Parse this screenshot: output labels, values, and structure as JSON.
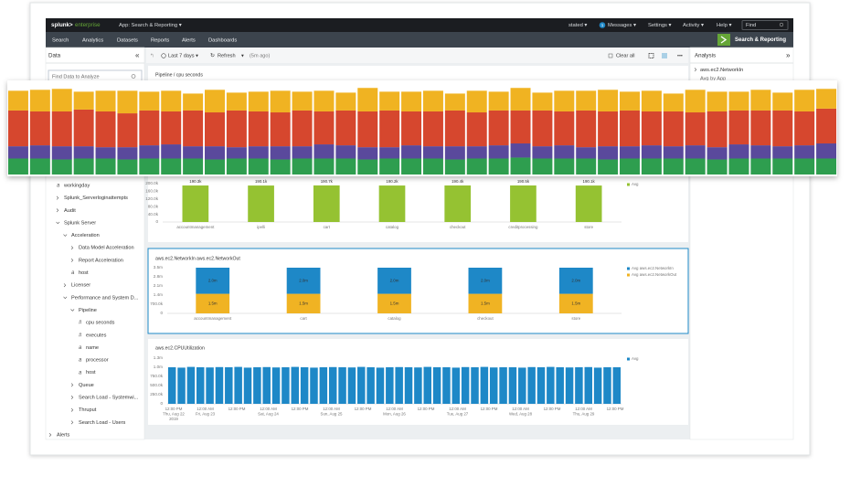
{
  "header": {
    "brand": "splunk>",
    "product": "enterprise",
    "app": "App: Search & Reporting ▾",
    "user": "stated ▾",
    "messages_count": "1",
    "messages": "Messages ▾",
    "settings": "Settings ▾",
    "activity": "Activity ▾",
    "help": "Help ▾",
    "find": "Find"
  },
  "nav": {
    "items": [
      "Search",
      "Analytics",
      "Datasets",
      "Reports",
      "Alerts",
      "Dashboards"
    ],
    "app_name": "Search & Reporting"
  },
  "left_panel": {
    "title": "Data",
    "collapse": "«",
    "search_placeholder": "Find Data to Analyze",
    "tree": [
      {
        "label": "workingday",
        "icon": "a"
      },
      {
        "label": "Splunk_Serverloginattempts"
      },
      {
        "label": "Audit"
      },
      {
        "label": "Splunk Server"
      },
      {
        "label": "Acceleration"
      },
      {
        "label": "Data Model Acceleration"
      },
      {
        "label": "Report Acceleration"
      },
      {
        "label": "host",
        "icon": "a"
      },
      {
        "label": "Licenser"
      },
      {
        "label": "Performance and System D..."
      },
      {
        "label": "Pipeline"
      },
      {
        "label": "cpu seconds",
        "icon": "#"
      },
      {
        "label": "executes",
        "icon": "#"
      },
      {
        "label": "name",
        "icon": "a"
      },
      {
        "label": "processor",
        "icon": "a"
      },
      {
        "label": "host",
        "icon": "a"
      },
      {
        "label": "Queue"
      },
      {
        "label": "Search Load - Systemwi..."
      },
      {
        "label": "Thruput"
      },
      {
        "label": "Search Load - Users"
      },
      {
        "label": "Alerts"
      }
    ]
  },
  "toolbar": {
    "time": "Last 7 days ▾",
    "refresh": "Refresh",
    "refresh_menu": "▾",
    "ago": "(5m ago)",
    "clear": "Clear all",
    "more": "•••"
  },
  "right_panel": {
    "title": "Analysis",
    "collapse": "»",
    "metric": "aws.ec2.NetworkIn",
    "sub": "Avg by App"
  },
  "chart_data": [
    {
      "type": "bar",
      "stacked": true,
      "categories": [
        null,
        null,
        null,
        null,
        null,
        null,
        null,
        null,
        null,
        null,
        null,
        null,
        null,
        null,
        null,
        null,
        null,
        null,
        null,
        null,
        null,
        null,
        null,
        null,
        null,
        null,
        null,
        null,
        null,
        null,
        null,
        null,
        null,
        null,
        null,
        null,
        null,
        null
      ],
      "ylim": [
        0,
        100
      ],
      "series": [
        {
          "color": "#f0b323",
          "values": [
            21,
            23,
            24,
            19,
            22,
            24,
            20,
            22,
            18,
            24,
            19,
            21,
            23,
            20,
            22,
            19,
            25,
            20,
            21,
            22,
            18,
            23,
            20,
            24,
            19,
            22,
            21,
            23,
            20,
            22,
            19,
            24,
            21,
            20,
            22,
            19,
            23,
            21
          ]
        },
        {
          "color": "#d6472e",
          "values": [
            38,
            36,
            37,
            39,
            38,
            36,
            37,
            35,
            38,
            36,
            39,
            37,
            36,
            38,
            35,
            37,
            38,
            39,
            36,
            37,
            38,
            36,
            37,
            35,
            38,
            36,
            39,
            37,
            38,
            36,
            37,
            35,
            38,
            36,
            37,
            38,
            36,
            37
          ]
        },
        {
          "color": "#5a4a9c",
          "values": [
            13,
            14,
            14,
            13,
            12,
            13,
            14,
            15,
            13,
            14,
            12,
            13,
            14,
            13,
            15,
            14,
            13,
            12,
            14,
            13,
            14,
            13,
            14,
            15,
            13,
            14,
            12,
            14,
            13,
            14,
            13,
            14,
            13,
            15,
            14,
            13,
            14,
            16
          ]
        },
        {
          "color": "#2e9e50",
          "values": [
            17,
            17,
            16,
            17,
            17,
            16,
            17,
            17,
            17,
            16,
            17,
            17,
            16,
            17,
            17,
            17,
            16,
            17,
            17,
            17,
            16,
            17,
            17,
            18,
            17,
            17,
            17,
            16,
            17,
            17,
            17,
            17,
            16,
            17,
            17,
            17,
            17,
            17
          ]
        }
      ]
    },
    {
      "type": "bar",
      "title": "Pipeline / cpu seconds",
      "categories": [
        "accountmanagement",
        "ipelli",
        "cart",
        "catalog",
        "checkout",
        "creditprocessing",
        "store"
      ],
      "ylim": [
        0,
        200000
      ],
      "yticks": [
        0,
        {
          "value": 40000,
          "label": "40.0k"
        },
        {
          "value": 80000,
          "label": "80.0k"
        },
        {
          "value": 120000,
          "label": "120.0k"
        },
        {
          "value": 160000,
          "label": "160.0k"
        },
        {
          "value": 200000,
          "label": "200.0k"
        }
      ],
      "grid": false,
      "legend": "right",
      "series": [
        {
          "name": "Avg",
          "color": "#95c232",
          "values": [
            190300,
            190100,
            190700,
            190200,
            190400,
            190500,
            190100
          ],
          "value_labels": [
            "190.3k",
            "190.1k",
            "190.7k",
            "190.2k",
            "190.4k",
            "190.5k",
            "190.1k"
          ]
        }
      ]
    },
    {
      "type": "bar",
      "stacked": true,
      "titles": [
        "aws.ec2.NetworkIn",
        "aws.ec2.NetworkOut"
      ],
      "categories": [
        "accountmanagement",
        "cart",
        "catalog",
        "checkout",
        "store"
      ],
      "ylim": [
        0,
        3500000
      ],
      "yticks": [
        0,
        {
          "value": 700000,
          "label": "700.0k"
        },
        {
          "value": 1400000,
          "label": "1.4m"
        },
        {
          "value": 2100000,
          "label": "2.1m"
        },
        {
          "value": 2800000,
          "label": "2.8m"
        },
        {
          "value": 3500000,
          "label": "3.5m"
        }
      ],
      "grid": false,
      "legend": "right",
      "series": [
        {
          "name": "Avg aws.ec2.NetworkIn",
          "color": "#1e88c7",
          "values": [
            2000000,
            2000000,
            2000000,
            2000000,
            2000000
          ],
          "value_labels": [
            "2.0m",
            "2.0m",
            "2.0m",
            "2.0m",
            "2.0m"
          ]
        },
        {
          "name": "Avg aws.ec2.NetworkOut",
          "color": "#f0b323",
          "values": [
            1500000,
            1500000,
            1500000,
            1500000,
            1500000
          ],
          "value_labels": [
            "1.5m",
            "1.5m",
            "1.5m",
            "1.5m",
            "1.5m"
          ]
        }
      ]
    },
    {
      "type": "bar",
      "title": "aws.ec2.CPUUtilization",
      "categories": [
        null,
        null,
        null,
        null,
        null,
        null,
        null,
        null,
        null,
        null,
        null,
        null,
        null,
        null,
        null,
        null,
        null,
        null,
        null,
        null,
        null,
        null,
        null,
        null,
        null,
        null,
        null,
        null,
        null,
        null,
        null,
        null,
        null,
        null,
        null,
        null,
        null,
        null,
        null,
        null,
        null,
        null,
        null,
        null,
        null,
        null,
        null,
        null
      ],
      "ylim": [
        0,
        1250000
      ],
      "yticks": [
        0,
        {
          "value": 250000,
          "label": "250.0k"
        },
        {
          "value": 500000,
          "label": "500.0k"
        },
        {
          "value": 750000,
          "label": "750.0k"
        },
        {
          "value": 1000000,
          "label": "1.0m"
        },
        {
          "value": 1250000,
          "label": "1.3m"
        }
      ],
      "grid": false,
      "legend": "right",
      "xtick_labels": [
        {
          "time": "12:00 PM",
          "day": "Thu, Aug 22",
          "year": "2019"
        },
        {
          "time": "12:00 AM",
          "day": "Fri, Aug 23"
        },
        {
          "time": "12:00 PM"
        },
        {
          "time": "12:00 AM",
          "day": "Sat, Aug 24"
        },
        {
          "time": "12:00 PM"
        },
        {
          "time": "12:00 AM",
          "day": "Sun, Aug 25"
        },
        {
          "time": "12:00 PM"
        },
        {
          "time": "12:00 AM",
          "day": "Mon, Aug 26"
        },
        {
          "time": "12:00 PM"
        },
        {
          "time": "12:00 AM",
          "day": "Tue, Aug 27"
        },
        {
          "time": "12:00 PM"
        },
        {
          "time": "12:00 AM",
          "day": "Wed, Aug 28"
        },
        {
          "time": "12:00 PM"
        },
        {
          "time": "12:00 AM",
          "day": "Thu, Aug 29"
        },
        {
          "time": "12:00 PM"
        }
      ],
      "series": [
        {
          "name": "Avg",
          "color": "#1e88c7",
          "values": [
            1000000,
            990000,
            1010000,
            1000000,
            995000,
            1005000,
            1000000,
            1010000,
            990000,
            1000000,
            1005000,
            995000,
            1000000,
            1010000,
            1000000,
            990000,
            1000000,
            1005000,
            1000000,
            995000,
            1010000,
            1000000,
            990000,
            1000000,
            1005000,
            1000000,
            995000,
            1010000,
            1000000,
            1000000,
            990000,
            1005000,
            1000000,
            1010000,
            995000,
            1000000,
            1000000,
            990000,
            1005000,
            1000000,
            1010000,
            1000000,
            995000,
            1000000,
            1005000,
            990000,
            1000000,
            1000000
          ]
        }
      ]
    }
  ]
}
